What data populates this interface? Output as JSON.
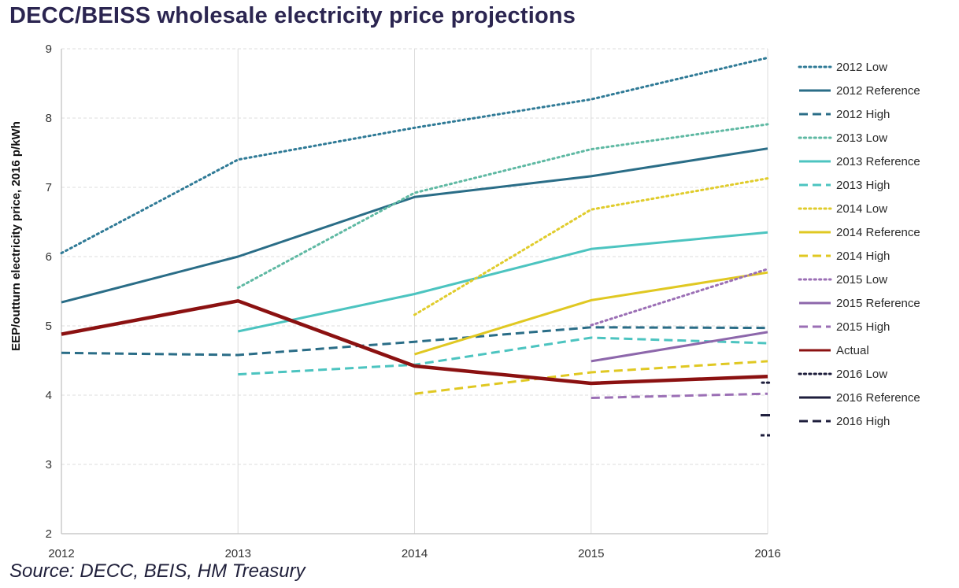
{
  "chart_data": {
    "type": "line",
    "title": "DECC/BEISS wholesale electricity price projections",
    "source": "Source: DECC, BEIS, HM Treasury",
    "ylabel": "EEP/outturn electricity price, 2016 p/kWh",
    "xlabel": "",
    "x": [
      2012,
      2013,
      2014,
      2015,
      2016
    ],
    "x_tick_labels": [
      "2012",
      "2013",
      "2014",
      "2015",
      "2016"
    ],
    "ylim": [
      2,
      9
    ],
    "y_ticks": [
      2,
      3,
      4,
      5,
      6,
      7,
      8,
      9
    ],
    "y_tick_labels": [
      "2",
      "3",
      "4",
      "5",
      "6",
      "7",
      "8",
      "9"
    ],
    "grid": true,
    "legend_position": "right",
    "series": [
      {
        "name": "2012 Low",
        "color": "#2f7a96",
        "dash": "dotted",
        "values": [
          6.05,
          7.4,
          7.86,
          8.27,
          8.87
        ]
      },
      {
        "name": "2012 Reference",
        "color": "#2a6d87",
        "dash": "solid",
        "values": [
          5.34,
          6.0,
          6.86,
          7.16,
          7.56
        ]
      },
      {
        "name": "2012 High",
        "color": "#2a6d87",
        "dash": "dashed",
        "values": [
          4.61,
          4.58,
          4.77,
          4.98,
          4.97
        ]
      },
      {
        "name": "2013 Low",
        "color": "#5fb9a3",
        "dash": "dotted",
        "values": [
          null,
          5.55,
          6.92,
          7.55,
          7.91
        ]
      },
      {
        "name": "2013 Reference",
        "color": "#4cc4c0",
        "dash": "solid",
        "values": [
          null,
          4.92,
          5.46,
          6.11,
          6.35
        ]
      },
      {
        "name": "2013 High",
        "color": "#4cc4c0",
        "dash": "dashed",
        "values": [
          null,
          4.3,
          4.44,
          4.83,
          4.75
        ]
      },
      {
        "name": "2014 Low",
        "color": "#e0cc2c",
        "dash": "dotted",
        "values": [
          null,
          null,
          5.16,
          6.68,
          7.13
        ]
      },
      {
        "name": "2014 Reference",
        "color": "#e0c822",
        "dash": "solid",
        "values": [
          null,
          null,
          4.59,
          5.37,
          5.77
        ]
      },
      {
        "name": "2014 High",
        "color": "#e0c822",
        "dash": "dashed",
        "values": [
          null,
          null,
          4.02,
          4.33,
          4.49
        ]
      },
      {
        "name": "2015 Low",
        "color": "#9b6fb5",
        "dash": "dotted",
        "values": [
          null,
          null,
          null,
          5.01,
          5.82
        ]
      },
      {
        "name": "2015 Reference",
        "color": "#8d67ab",
        "dash": "solid",
        "values": [
          null,
          null,
          null,
          4.49,
          4.91
        ]
      },
      {
        "name": "2015 High",
        "color": "#9b6fb5",
        "dash": "dashed",
        "values": [
          null,
          null,
          null,
          3.96,
          4.02
        ]
      },
      {
        "name": "Actual",
        "color": "#8b1111",
        "dash": "solid",
        "values": [
          4.88,
          5.36,
          4.42,
          4.17,
          4.27
        ]
      },
      {
        "name": "2016 Low",
        "color": "#1e1e3c",
        "dash": "dotted",
        "values": [
          null,
          null,
          null,
          null,
          4.18
        ]
      },
      {
        "name": "2016 Reference",
        "color": "#1e1e3c",
        "dash": "solid",
        "values": [
          null,
          null,
          null,
          null,
          3.71
        ]
      },
      {
        "name": "2016 High",
        "color": "#1e1e3c",
        "dash": "dashed",
        "values": [
          null,
          null,
          null,
          null,
          3.42
        ]
      }
    ]
  }
}
